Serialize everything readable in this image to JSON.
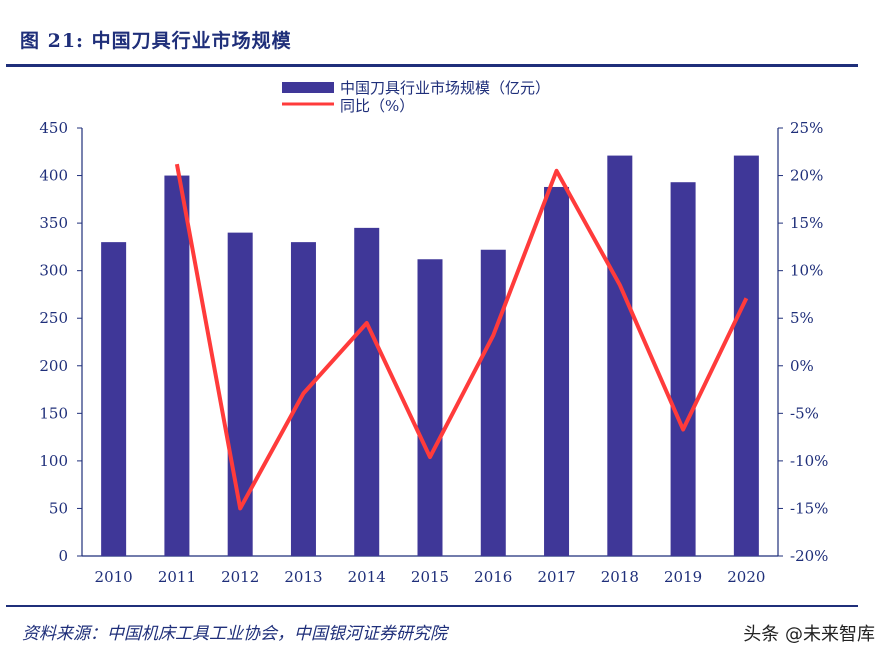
{
  "figure": {
    "title": "图 21:  中国刀具行业市场规模",
    "source": "资料来源：中国机床工具工业协会，中国银河证券研究院",
    "watermark": "头条 @未来智库"
  },
  "colors": {
    "bar": "#3f3798",
    "line": "#ff3b3b",
    "accent": "#1f2f7a"
  },
  "chart_data": {
    "type": "bar",
    "categories": [
      "2010",
      "2011",
      "2012",
      "2013",
      "2014",
      "2015",
      "2016",
      "2017",
      "2018",
      "2019",
      "2020"
    ],
    "series": [
      {
        "name": "中国刀具行业市场规模（亿元）",
        "type": "bar",
        "axis": "left",
        "values": [
          330,
          400,
          340,
          330,
          345,
          312,
          322,
          388,
          421,
          393,
          421
        ]
      },
      {
        "name": "同比（%）",
        "type": "line",
        "axis": "right",
        "values": [
          null,
          21.2,
          -15.0,
          -2.9,
          4.5,
          -9.6,
          3.2,
          20.5,
          8.5,
          -6.7,
          7.1
        ]
      }
    ],
    "ylim_left": [
      0,
      450
    ],
    "yticks_left": [
      "0",
      "50",
      "100",
      "150",
      "200",
      "250",
      "300",
      "350",
      "400",
      "450"
    ],
    "ylim_right": [
      -20,
      25
    ],
    "yticks_right": [
      "-20%",
      "-15%",
      "-10%",
      "-5%",
      "0%",
      "5%",
      "10%",
      "15%",
      "20%",
      "25%"
    ],
    "legend_position": "top-center",
    "grid": false
  }
}
